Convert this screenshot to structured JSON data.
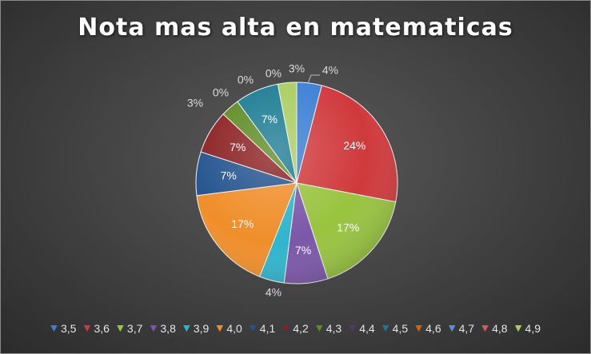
{
  "chart_data": {
    "type": "pie",
    "title": "Nota mas alta en matematicas",
    "categories": [
      "3,5",
      "3,6",
      "3,7",
      "3,8",
      "3,9",
      "4,0",
      "4,1",
      "4,2",
      "4,3",
      "4,4",
      "4,5",
      "4,6",
      "4,7",
      "4,8",
      "4,9"
    ],
    "values": [
      4,
      24,
      17,
      7,
      4,
      17,
      7,
      7,
      3,
      0,
      7,
      0,
      0,
      0,
      3
    ],
    "data_labels": [
      "4%",
      "24%",
      "17%",
      "7%",
      "4%",
      "17%",
      "7%",
      "7%",
      "3%",
      "0%",
      "7%",
      "0%",
      "0%",
      "0%",
      "3%"
    ],
    "colors": [
      "#3a7fd5",
      "#d0393c",
      "#98c43f",
      "#7b57a8",
      "#2fb5cc",
      "#f08e2a",
      "#24548f",
      "#8c2123",
      "#5f8b26",
      "#4f3a75",
      "#1b7b92",
      "#cf6418",
      "#5c8fd8",
      "#d8595b",
      "#a9cd5f"
    ],
    "legend": "bottom"
  }
}
